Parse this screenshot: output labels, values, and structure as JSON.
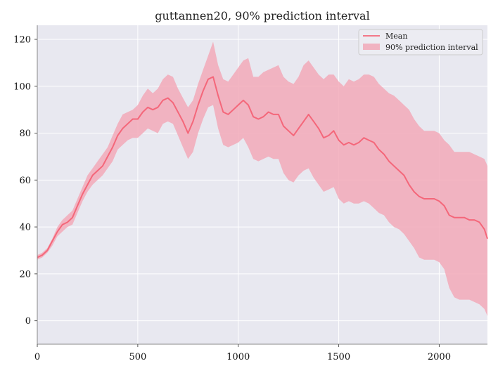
{
  "chart_data": {
    "type": "area",
    "title": "guttannen20, 90% prediction interval",
    "xlabel": "",
    "ylabel": "",
    "xlim": [
      0,
      2240
    ],
    "ylim": [
      -10,
      126
    ],
    "xticks": [
      0,
      500,
      1000,
      1500,
      2000
    ],
    "yticks": [
      0,
      20,
      40,
      60,
      80,
      100,
      120
    ],
    "grid": true,
    "legend_position": "top-right",
    "colors": {
      "mean": "#f4677a",
      "band": "#f2a9b9",
      "plot_bg": "#e8e8f0",
      "grid": "#ffffff"
    },
    "series": [
      {
        "name": "Mean",
        "x": [
          0,
          25,
          50,
          75,
          100,
          125,
          150,
          175,
          200,
          225,
          250,
          275,
          300,
          325,
          350,
          375,
          400,
          425,
          450,
          475,
          500,
          525,
          550,
          575,
          600,
          625,
          650,
          675,
          700,
          725,
          750,
          775,
          800,
          825,
          850,
          875,
          900,
          925,
          950,
          975,
          1000,
          1025,
          1050,
          1075,
          1100,
          1125,
          1150,
          1175,
          1200,
          1225,
          1250,
          1275,
          1300,
          1325,
          1350,
          1375,
          1400,
          1425,
          1450,
          1475,
          1500,
          1525,
          1550,
          1575,
          1600,
          1625,
          1650,
          1675,
          1700,
          1725,
          1750,
          1775,
          1800,
          1825,
          1850,
          1875,
          1900,
          1925,
          1950,
          1975,
          2000,
          2025,
          2050,
          2075,
          2100,
          2125,
          2150,
          2175,
          2200,
          2225,
          2240
        ],
        "y": [
          27,
          28,
          30,
          34,
          38,
          41,
          42,
          44,
          49,
          54,
          58,
          62,
          64,
          66,
          70,
          74,
          79,
          82,
          84,
          86,
          86,
          89,
          91,
          90,
          91,
          94,
          95,
          93,
          89,
          85,
          80,
          85,
          92,
          98,
          103,
          104,
          96,
          89,
          88,
          90,
          92,
          94,
          92,
          87,
          86,
          87,
          89,
          88,
          88,
          83,
          81,
          79,
          82,
          85,
          88,
          85,
          82,
          78,
          79,
          81,
          77,
          75,
          76,
          75,
          76,
          78,
          77,
          76,
          73,
          71,
          68,
          66,
          64,
          62,
          58,
          55,
          53,
          52,
          52,
          52,
          51,
          49,
          45,
          44,
          44,
          44,
          43,
          43,
          42,
          39,
          35
        ]
      },
      {
        "name": "90% prediction interval",
        "x": [
          0,
          25,
          50,
          75,
          100,
          125,
          150,
          175,
          200,
          225,
          250,
          275,
          300,
          325,
          350,
          375,
          400,
          425,
          450,
          475,
          500,
          525,
          550,
          575,
          600,
          625,
          650,
          675,
          700,
          725,
          750,
          775,
          800,
          825,
          850,
          875,
          900,
          925,
          950,
          975,
          1000,
          1025,
          1050,
          1075,
          1100,
          1125,
          1150,
          1175,
          1200,
          1225,
          1250,
          1275,
          1300,
          1325,
          1350,
          1375,
          1400,
          1425,
          1450,
          1475,
          1500,
          1525,
          1550,
          1575,
          1600,
          1625,
          1650,
          1675,
          1700,
          1725,
          1750,
          1775,
          1800,
          1825,
          1850,
          1875,
          1900,
          1925,
          1950,
          1975,
          2000,
          2025,
          2050,
          2075,
          2100,
          2125,
          2150,
          2175,
          2200,
          2225,
          2240
        ],
        "lower": [
          26,
          27,
          29,
          32,
          36,
          38,
          40,
          41,
          46,
          51,
          55,
          58,
          60,
          62,
          65,
          68,
          73,
          75,
          77,
          78,
          78,
          80,
          82,
          81,
          80,
          84,
          85,
          84,
          79,
          74,
          69,
          72,
          80,
          86,
          91,
          92,
          82,
          75,
          74,
          75,
          76,
          78,
          74,
          69,
          68,
          69,
          70,
          69,
          69,
          63,
          60,
          59,
          62,
          64,
          65,
          61,
          58,
          55,
          56,
          57,
          52,
          50,
          51,
          50,
          50,
          51,
          50,
          48,
          46,
          45,
          42,
          40,
          39,
          37,
          34,
          31,
          27,
          26,
          26,
          26,
          25,
          22,
          14,
          10,
          9,
          9,
          9,
          8,
          7,
          5,
          2
        ],
        "upper": [
          28,
          29,
          31,
          35,
          40,
          43,
          45,
          47,
          52,
          57,
          62,
          65,
          68,
          71,
          74,
          79,
          84,
          88,
          89,
          90,
          92,
          96,
          99,
          97,
          99,
          103,
          105,
          104,
          99,
          95,
          91,
          94,
          101,
          107,
          113,
          119,
          109,
          103,
          102,
          105,
          108,
          111,
          112,
          104,
          104,
          106,
          107,
          108,
          109,
          104,
          102,
          101,
          104,
          109,
          111,
          108,
          105,
          103,
          105,
          105,
          102,
          100,
          103,
          102,
          103,
          105,
          105,
          104,
          101,
          99,
          97,
          96,
          94,
          92,
          90,
          86,
          83,
          81,
          81,
          81,
          80,
          77,
          75,
          72,
          72,
          72,
          72,
          71,
          70,
          69,
          66
        ]
      }
    ]
  }
}
